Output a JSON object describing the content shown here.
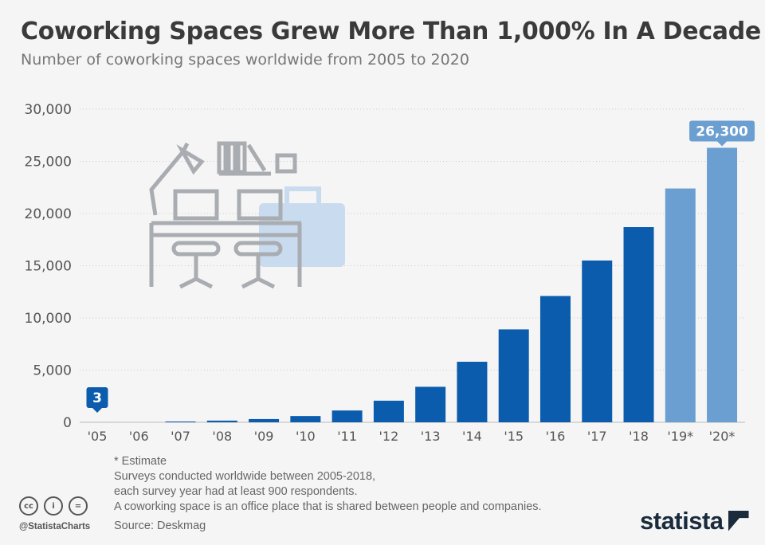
{
  "title": "Coworking Spaces Grew More Than 1,000% In A Decade",
  "subtitle": "Number of coworking spaces worldwide from 2005 to 2020",
  "chart_data": {
    "type": "bar",
    "categories": [
      "'05",
      "'06",
      "'07",
      "'08",
      "'09",
      "'10",
      "'11",
      "'12",
      "'13",
      "'14",
      "'15",
      "'16",
      "'17",
      "'18",
      "'19*",
      "'20*"
    ],
    "values": [
      3,
      0,
      75,
      160,
      310,
      600,
      1130,
      2070,
      3400,
      5800,
      8900,
      12100,
      15500,
      18700,
      22400,
      26300
    ],
    "estimate": [
      false,
      false,
      false,
      false,
      false,
      false,
      false,
      false,
      false,
      false,
      false,
      false,
      false,
      false,
      true,
      true
    ],
    "data_labels": {
      "0": "3",
      "15": "26,300"
    },
    "ylim": [
      0,
      30000
    ],
    "yticks": [
      0,
      5000,
      10000,
      15000,
      20000,
      25000,
      30000
    ],
    "ytick_labels": [
      "0",
      "5,000",
      "10,000",
      "15,000",
      "20,000",
      "25,000",
      "30,000"
    ],
    "grid": true,
    "colors": {
      "actual": "#0b5cad",
      "estimate": "#6b9fd1"
    }
  },
  "notes": [
    "* Estimate",
    "Surveys conducted worldwide between 2005-2018,",
    "each survey year had at least 900 respondents.",
    "A coworking space is an office place that is shared between people and companies."
  ],
  "source": "Source: Deskmag",
  "handle": "@StatistaCharts",
  "license_icons": [
    "cc-icon",
    "by-icon",
    "nd-icon"
  ],
  "logo": "statista"
}
